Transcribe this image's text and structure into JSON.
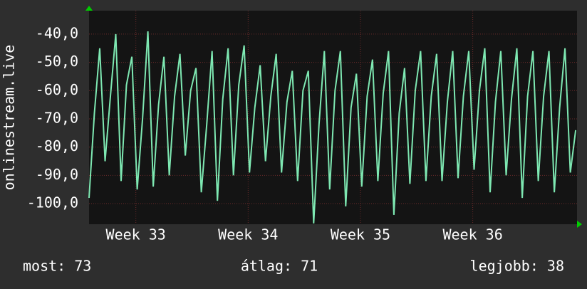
{
  "chart_data": {
    "type": "line",
    "ylabel": "onlinestream.live",
    "x": [
      0,
      8,
      16,
      24,
      32,
      40,
      48,
      56,
      64,
      72,
      80,
      88,
      96,
      104,
      112,
      120,
      128,
      136,
      144,
      152,
      160,
      168,
      176,
      184,
      192,
      200,
      208,
      216,
      224,
      232,
      240,
      248,
      256,
      264,
      272,
      280,
      288,
      296,
      304,
      312,
      320,
      328,
      336,
      344,
      352,
      360,
      368,
      376,
      384,
      392,
      400,
      408,
      416,
      424,
      432,
      440,
      448,
      456,
      464,
      472,
      480,
      488,
      496,
      504,
      512,
      520,
      528,
      536,
      544,
      552,
      560,
      568,
      576,
      584,
      592,
      600,
      608,
      616,
      624,
      632,
      640,
      648,
      656,
      664,
      672,
      680,
      688,
      696,
      704,
      712,
      720,
      728
    ],
    "series": [
      {
        "name": "onlinestream.live",
        "color": "#7ee8b2",
        "values": [
          -98,
          -68,
          -45,
          -85,
          -62,
          -40,
          -92,
          -58,
          -48,
          -95,
          -70,
          -39,
          -94,
          -65,
          -48,
          -90,
          -62,
          -47,
          -83,
          -60,
          -52,
          -96,
          -72,
          -46,
          -99,
          -63,
          -45,
          -90,
          -58,
          -44,
          -89,
          -66,
          -51,
          -85,
          -62,
          -47,
          -89,
          -64,
          -53,
          -92,
          -60,
          -53,
          -107,
          -72,
          -46,
          -95,
          -60,
          -46,
          -101,
          -66,
          -54,
          -94,
          -62,
          -49,
          -92,
          -61,
          -46,
          -104,
          -68,
          -52,
          -93,
          -60,
          -46,
          -92,
          -62,
          -47,
          -92,
          -64,
          -46,
          -91,
          -62,
          -46,
          -88,
          -60,
          -45,
          -96,
          -64,
          -46,
          -90,
          -63,
          -45,
          -98,
          -62,
          -46,
          -92,
          -62,
          -46,
          -96,
          -66,
          -45,
          -89,
          -74
        ]
      }
    ],
    "xlim": [
      0,
      730
    ],
    "xticks": [
      {
        "value": 70,
        "label": "Week 33"
      },
      {
        "value": 238,
        "label": "Week 34"
      },
      {
        "value": 406,
        "label": "Week 35"
      },
      {
        "value": 574,
        "label": "Week 36"
      }
    ],
    "ylim": [
      -107.3,
      -31.7
    ],
    "yticks": [
      {
        "value": -100,
        "label": "-100,0"
      },
      {
        "value": -90,
        "label": "-90,0"
      },
      {
        "value": -80,
        "label": "-80,0"
      },
      {
        "value": -70,
        "label": "-70,0"
      },
      {
        "value": -60,
        "label": "-60,0"
      },
      {
        "value": -50,
        "label": "-50,0"
      },
      {
        "value": -40,
        "label": "-40,0"
      }
    ],
    "grid": true,
    "footer": [
      "most: 73",
      "átlag: 71",
      "legjobb: 38"
    ]
  }
}
